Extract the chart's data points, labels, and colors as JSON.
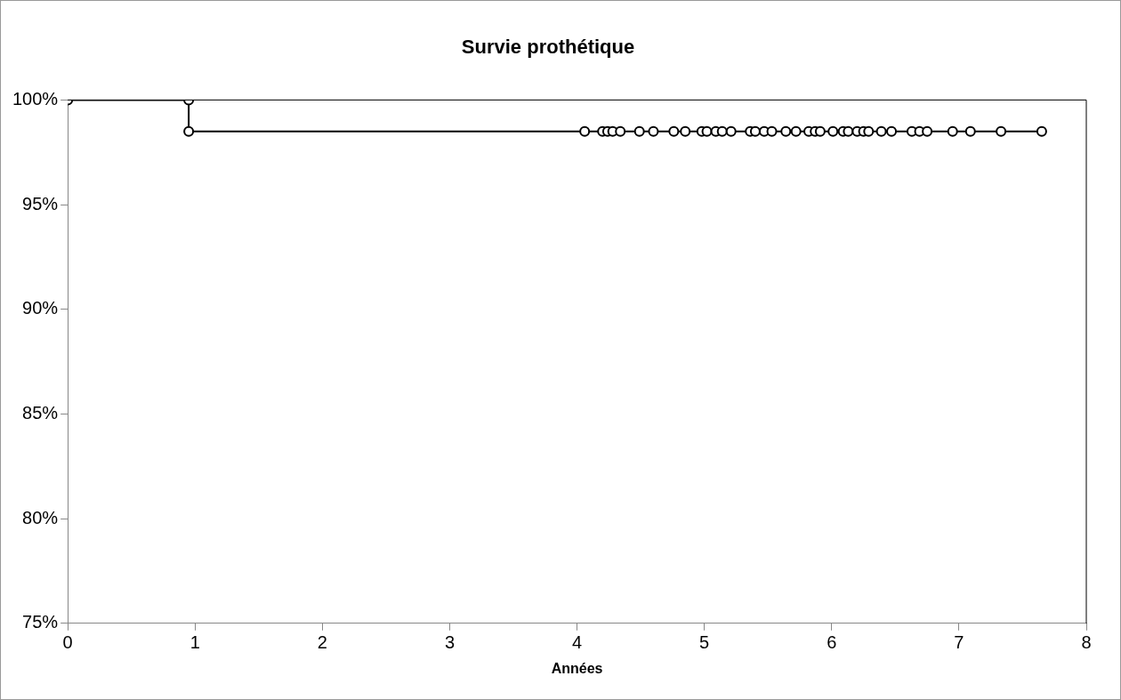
{
  "chart_data": {
    "type": "step",
    "title": "Survie prothétique",
    "xlabel": "Années",
    "x": [
      0,
      0.95,
      0.95,
      4.06,
      4.2,
      4.24,
      4.28,
      4.34,
      4.49,
      4.6,
      4.76,
      4.85,
      4.98,
      5.02,
      5.09,
      5.14,
      5.21,
      5.36,
      5.4,
      5.47,
      5.53,
      5.64,
      5.72,
      5.82,
      5.87,
      5.91,
      6.01,
      6.09,
      6.13,
      6.2,
      6.25,
      6.29,
      6.39,
      6.47,
      6.63,
      6.69,
      6.75,
      6.95,
      7.09,
      7.33,
      7.65
    ],
    "series": [
      {
        "color": "#000000",
        "values": [
          100,
          100,
          98.5,
          98.5,
          98.5,
          98.5,
          98.5,
          98.5,
          98.5,
          98.5,
          98.5,
          98.5,
          98.5,
          98.5,
          98.5,
          98.5,
          98.5,
          98.5,
          98.5,
          98.5,
          98.5,
          98.5,
          98.5,
          98.5,
          98.5,
          98.5,
          98.5,
          98.5,
          98.5,
          98.5,
          98.5,
          98.5,
          98.5,
          98.5,
          98.5,
          98.5,
          98.5,
          98.5,
          98.5,
          98.5,
          98.5
        ]
      }
    ],
    "xlim": [
      0,
      8
    ],
    "xticks": [
      0,
      1,
      2,
      3,
      4,
      5,
      6,
      7,
      8
    ],
    "ylim": [
      75,
      100
    ],
    "yticks": [
      {
        "value": 75,
        "label": "75%"
      },
      {
        "value": 80,
        "label": "80%"
      },
      {
        "value": 85,
        "label": "85%"
      },
      {
        "value": 90,
        "label": "90%"
      },
      {
        "value": 95,
        "label": "95%"
      },
      {
        "value": 100,
        "label": "100%"
      }
    ],
    "marker": "circle",
    "legend": false,
    "grid": false
  }
}
